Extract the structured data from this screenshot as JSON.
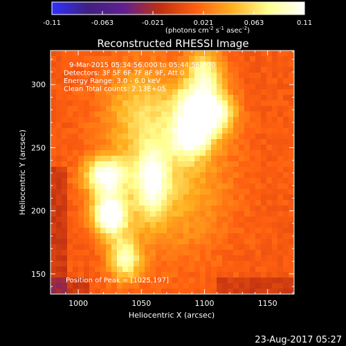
{
  "colorbar": {
    "ticks": [
      "-0.11",
      "-0.063",
      "-0.021",
      "0.021",
      "0.063",
      "0.11"
    ],
    "units_label": "(photons cm",
    "units_sup1": "-2",
    "units_mid1": " s",
    "units_sup2": "-1",
    "units_mid2": " asec",
    "units_sup3": "-2",
    "units_end": ")",
    "range": [
      -0.11,
      0.11
    ]
  },
  "chart_data": {
    "type": "heatmap",
    "title": "Reconstructed RHESSI Image",
    "xlabel": "Heliocentric X (arcsec)",
    "ylabel": "Heliocentric Y (arcsec)",
    "xlim": [
      978,
      1171
    ],
    "ylim": [
      134,
      327
    ],
    "x_ticks": [
      1000,
      1050,
      1100,
      1150
    ],
    "y_ticks": [
      150,
      200,
      250,
      300
    ],
    "annotations": [
      "9-Mar-2015 05:34:56.000 to 05:44:56.000",
      "Detectors: 3F 5F 6F 7F 8F 9F, Att 0",
      "Energy Range: 3.0 - 6.0 keV",
      "Clean    Total counts: 2.13E+05"
    ],
    "peak_text": "Position of Peak = [1025,197]",
    "peak_position": [
      1025,
      197
    ],
    "colormap_stops": [
      "#3030ff",
      "#402080",
      "#602090",
      "#c03010",
      "#ff6010",
      "#ffb020",
      "#ffff90",
      "#ffffff"
    ],
    "sources": [
      {
        "x": 1025,
        "y": 197,
        "peak": 0.11,
        "sx": 10,
        "sy": 12
      },
      {
        "x": 1022,
        "y": 228,
        "peak": 0.095,
        "sx": 12,
        "sy": 10
      },
      {
        "x": 1037,
        "y": 162,
        "peak": 0.075,
        "sx": 9,
        "sy": 12
      },
      {
        "x": 1058,
        "y": 222,
        "peak": 0.072,
        "sx": 9,
        "sy": 20
      },
      {
        "x": 1108,
        "y": 278,
        "peak": 0.085,
        "sx": 11,
        "sy": 12
      },
      {
        "x": 1090,
        "y": 258,
        "peak": 0.08,
        "sx": 11,
        "sy": 11
      },
      {
        "x": 1100,
        "y": 308,
        "peak": 0.07,
        "sx": 10,
        "sy": 14
      },
      {
        "x": 1088,
        "y": 282,
        "peak": 0.062,
        "sx": 10,
        "sy": 12
      },
      {
        "x": 1050,
        "y": 280,
        "peak": 0.04,
        "sx": 22,
        "sy": 26
      },
      {
        "x": 1075,
        "y": 225,
        "peak": 0.04,
        "sx": 30,
        "sy": 40
      }
    ]
  },
  "footer": {
    "date": "23-Aug-2017 05:27"
  }
}
